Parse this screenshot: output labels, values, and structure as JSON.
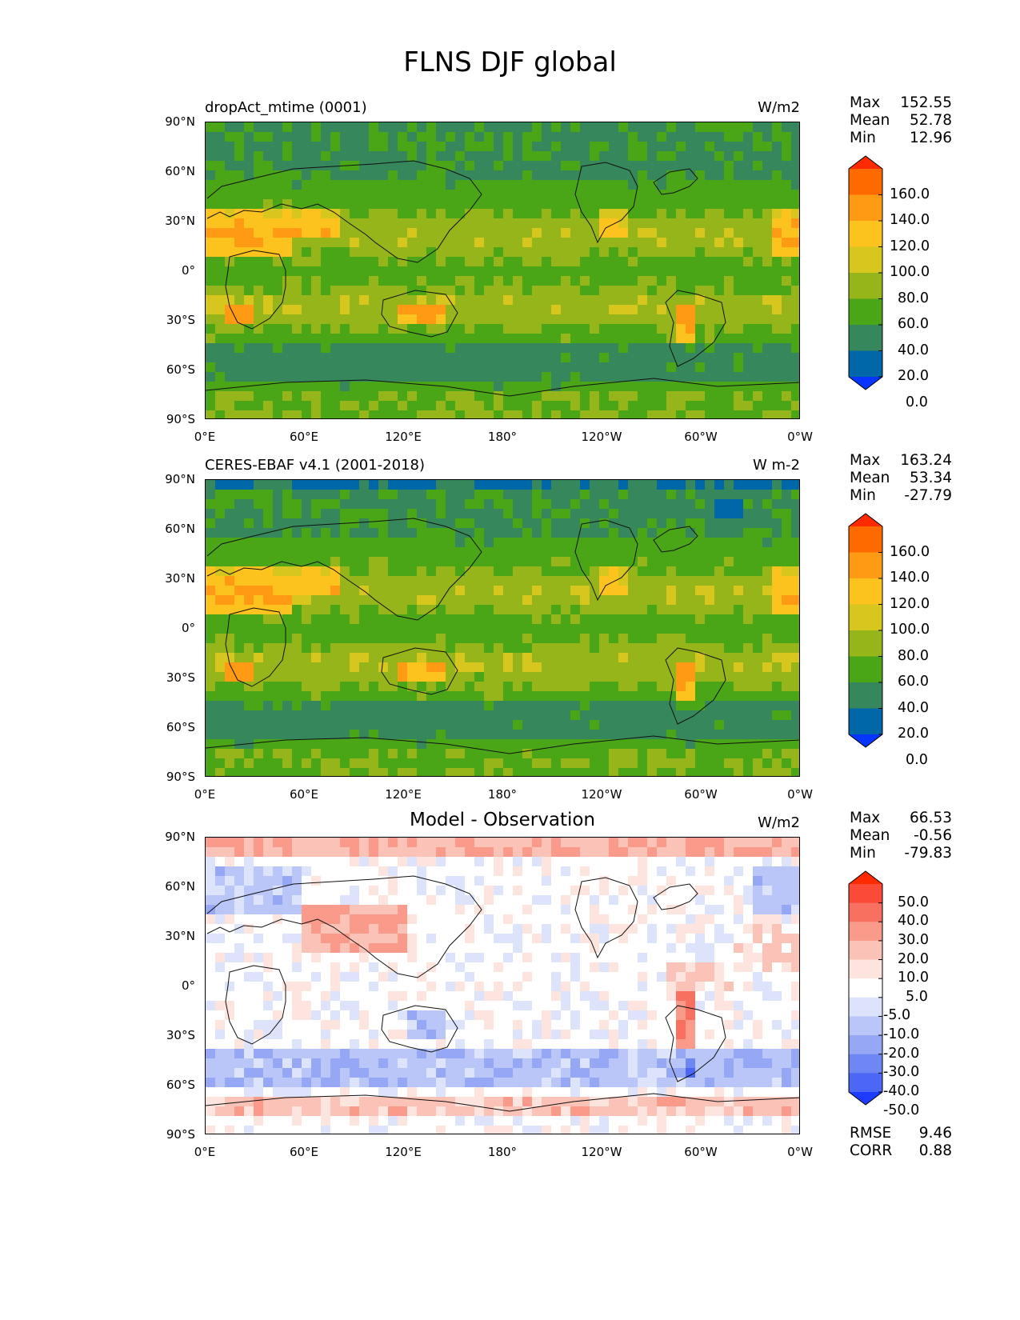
{
  "title": "FLNS DJF global",
  "lat_ticks": [
    "90°N",
    "60°N",
    "30°N",
    "0°",
    "30°S",
    "60°S",
    "90°S"
  ],
  "lon_ticks": [
    "0°E",
    "60°E",
    "120°E",
    "180°",
    "120°W",
    "60°W",
    "0°W"
  ],
  "chart_data": [
    {
      "type": "heatmap",
      "panel": "model",
      "title": "dropAct_mtime (0001)",
      "units": "W/m2",
      "stats": {
        "max": "152.55",
        "mean": "52.78",
        "min": "12.96"
      },
      "levels": [
        "160.0",
        "140.0",
        "120.0",
        "100.0",
        "80.0",
        "60.0",
        "40.0",
        "20.0",
        "0.0"
      ],
      "colors": [
        "#ff2a00",
        "#ff6a00",
        "#ff9a14",
        "#fcc21e",
        "#d6c61e",
        "#96b51a",
        "#4aa617",
        "#36875c",
        "#0068a8",
        "#0535ff"
      ]
    },
    {
      "type": "heatmap",
      "panel": "observation",
      "title": "CERES-EBAF v4.1 (2001-2018)",
      "units": "W m-2",
      "stats": {
        "max": "163.24",
        "mean": "53.34",
        "min": "-27.79"
      },
      "levels": [
        "160.0",
        "140.0",
        "120.0",
        "100.0",
        "80.0",
        "60.0",
        "40.0",
        "20.0",
        "0.0"
      ],
      "colors": [
        "#ff2a00",
        "#ff6a00",
        "#ff9a14",
        "#fcc21e",
        "#d6c61e",
        "#96b51a",
        "#4aa617",
        "#36875c",
        "#0068a8",
        "#0535ff"
      ]
    },
    {
      "type": "heatmap",
      "panel": "difference",
      "title": "Model - Observation",
      "units": "W/m2",
      "stats": {
        "max": "66.53",
        "mean": "-0.56",
        "min": "-79.83"
      },
      "levels": [
        "50.0",
        "40.0",
        "30.0",
        "20.0",
        "10.0",
        "5.0",
        "-5.0",
        "-10.0",
        "-20.0",
        "-30.0",
        "-40.0",
        "-50.0"
      ],
      "colors": [
        "#ff2a00",
        "#fb4a38",
        "#f8705f",
        "#f99a8a",
        "#fbc2b7",
        "#fde4df",
        "#ffffff",
        "#dde3fb",
        "#bac6f8",
        "#96a8f5",
        "#6f87f2",
        "#4c66f5",
        "#1d3cff"
      ],
      "metrics": {
        "rmse_label": "RMSE",
        "rmse": "9.46",
        "corr_label": "CORR",
        "corr": "0.88"
      }
    }
  ]
}
